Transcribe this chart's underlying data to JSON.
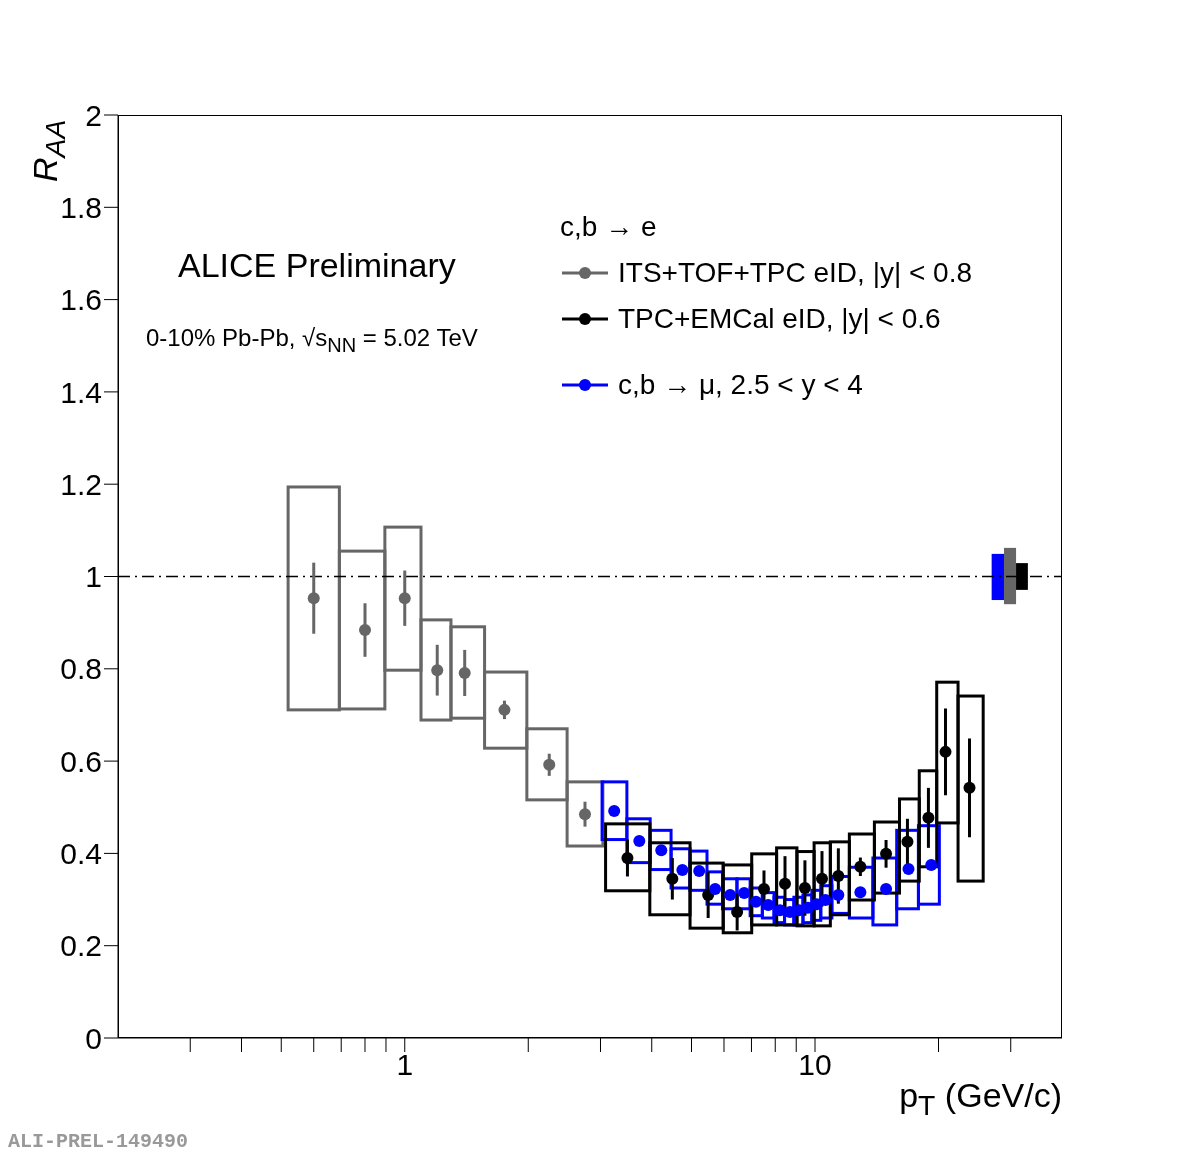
{
  "chart_data": {
    "type": "scatter",
    "ylabel": "R$_{AA}$",
    "xlabel": "p$_{T}$ (GeV/c)",
    "legend_title": "c,b → e",
    "legend": "top right",
    "log": "x",
    "grid": false,
    "marker": "circle",
    "xlim": [
      0.2,
      40
    ],
    "xticks": [
      {
        "value": 0.3,
        "label": null
      },
      {
        "value": 0.4,
        "label": null
      },
      {
        "value": 0.5,
        "label": null
      },
      {
        "value": 0.6,
        "label": null
      },
      {
        "value": 0.7,
        "label": null
      },
      {
        "value": 0.8,
        "label": null
      },
      {
        "value": 0.9,
        "label": null
      },
      1,
      {
        "value": 2,
        "label": null
      },
      {
        "value": 3,
        "label": null
      },
      {
        "value": 4,
        "label": null
      },
      {
        "value": 5,
        "label": null
      },
      {
        "value": 6,
        "label": null
      },
      {
        "value": 7,
        "label": null
      },
      {
        "value": 8,
        "label": null
      },
      {
        "value": 9,
        "label": null
      },
      10,
      {
        "value": 20,
        "label": null
      },
      {
        "value": 30,
        "label": null
      }
    ],
    "ylim": [
      0,
      2
    ],
    "yticks": [
      0,
      0.2,
      0.4,
      0.6,
      0.8,
      1,
      1.2,
      1.4,
      1.6,
      1.8,
      2
    ],
    "ref_lines": [
      {
        "axis": "y",
        "value": 1,
        "label": null,
        "color": "#000000",
        "line_style": "dashed"
      }
    ],
    "annotations": [
      "ALICE Preliminary",
      "0-10% Pb-Pb, √s$_{NN}$ = 5.02 TeV",
      "ALI-PREL-149490"
    ],
    "series": [
      {
        "type": "bar",
        "color": "#666666",
        "line_style": "solid",
        "x": [
          0.6,
          0.8,
          1,
          1.2,
          1.4,
          1.75,
          2.25,
          2.75
        ],
        "base": [
          0.711,
          0.713,
          0.797,
          0.689,
          0.693,
          0.628,
          0.516,
          0.416
        ],
        "values": [
          0.483,
          0.342,
          0.31,
          0.217,
          0.198,
          0.165,
          0.154,
          0.139
        ]
      },
      {
        "type": "bar",
        "color": "#0000ff",
        "line_style": "solid",
        "base": [
          0.43,
          0.38,
          0.365,
          0.325,
          0.32,
          0.29,
          0.28,
          0.28,
          0.265,
          0.26,
          0.25,
          0.245,
          0.245,
          0.25,
          0.255,
          0.26,
          0.27,
          0.26,
          0.245,
          0.28,
          0.29
        ],
        "values": [
          0.125,
          0.095,
          0.085,
          0.085,
          0.085,
          0.07,
          0.065,
          0.065,
          0.06,
          0.055,
          0.055,
          0.055,
          0.06,
          0.06,
          0.065,
          0.07,
          0.08,
          0.11,
          0.145,
          0.17,
          0.17
        ],
        "x": [
          3.245,
          3.73,
          4.215,
          4.715,
          5.215,
          5.705,
          6.205,
          6.71,
          7.195,
          7.695,
          8.205,
          8.66,
          9.11,
          9.59,
          10.065,
          10.6,
          11.4,
          12.9,
          14.85,
          16.85,
          18.95
        ]
      },
      {
        "type": "bar",
        "color": "#000000",
        "line_style": "solid",
        "base": [
          0.319,
          0.267,
          0.238,
          0.228,
          0.245,
          0.245,
          0.243,
          0.243,
          0.267,
          0.299,
          0.314,
          0.34,
          0.371,
          0.466,
          0.34
        ],
        "values": [
          0.145,
          0.156,
          0.141,
          0.147,
          0.154,
          0.167,
          0.161,
          0.18,
          0.158,
          0.143,
          0.154,
          0.178,
          0.208,
          0.305,
          0.401
        ],
        "x": [
          3.495,
          4.48,
          5.49,
          6.5,
          7.56,
          8.595,
          9.5,
          10.42,
          11.4,
          12.9,
          15.1,
          17.1,
          18.85,
          20.8,
          23.95
        ]
      },
      {
        "type": "bar",
        "colors": [
          "#0000ff",
          "#666666",
          "#000000"
        ],
        "base": [
          0.949,
          0.94,
          0.971
        ],
        "values": [
          0.1,
          0.122,
          0.058
        ],
        "x": [
          27.9,
          29.9,
          31.95
        ]
      },
      {
        "type": "scatter",
        "name": "ITS+TOF+TPC eID, |y| < 0.8",
        "color": "#666666",
        "x": [
          0.6,
          0.8,
          1,
          1.2,
          1.4,
          1.75,
          2.25,
          2.75
        ],
        "values": [
          0.953,
          0.884,
          0.953,
          0.797,
          0.791,
          0.711,
          0.592,
          0.485
        ],
        "errors": [
          0.077,
          0.058,
          0.06,
          0.055,
          0.05,
          0.02,
          0.024,
          0.027
        ]
      },
      {
        "type": "scatter",
        "name": "TPC+EMCal eID, |y| < 0.6",
        "color": "#000000",
        "x": [
          3.49,
          4.49,
          5.49,
          6.46,
          7.51,
          8.45,
          9.45,
          10.4,
          11.4,
          12.9,
          14.9,
          16.8,
          18.9,
          20.8,
          23.8
        ],
        "values": [
          0.39,
          0.345,
          0.31,
          0.273,
          0.323,
          0.334,
          0.325,
          0.345,
          0.351,
          0.371,
          0.399,
          0.425,
          0.477,
          0.62,
          0.542
        ],
        "errors": [
          0.04,
          0.045,
          0.05,
          0.04,
          0.04,
          0.06,
          0.06,
          0.06,
          0.06,
          0.02,
          0.03,
          0.05,
          0.065,
          0.094,
          0.107
        ]
      },
      {
        "type": "scatter",
        "name": "c,b → μ, 2.5 < y < 4",
        "color": "#0000ff",
        "x": [
          3.24,
          3.73,
          4.22,
          4.75,
          5.22,
          5.71,
          6.21,
          6.72,
          7.18,
          7.69,
          8.22,
          8.69,
          9.14,
          9.61,
          10.1,
          10.6,
          11.4,
          12.9,
          14.9,
          16.9,
          19.2
        ],
        "values": [
          0.492,
          0.427,
          0.407,
          0.364,
          0.362,
          0.323,
          0.31,
          0.314,
          0.295,
          0.288,
          0.277,
          0.273,
          0.277,
          0.282,
          0.29,
          0.299,
          0.31,
          0.316,
          0.323,
          0.366,
          0.375
        ],
        "errors": [
          0.01,
          0.01,
          0.01,
          0.01,
          0.01,
          0.01,
          0.01,
          0.01,
          0.01,
          0.01,
          0.01,
          0.01,
          0.01,
          0.01,
          0.01,
          0.01,
          0.01,
          0.01,
          0.01,
          0.01,
          0.01
        ]
      }
    ]
  }
}
